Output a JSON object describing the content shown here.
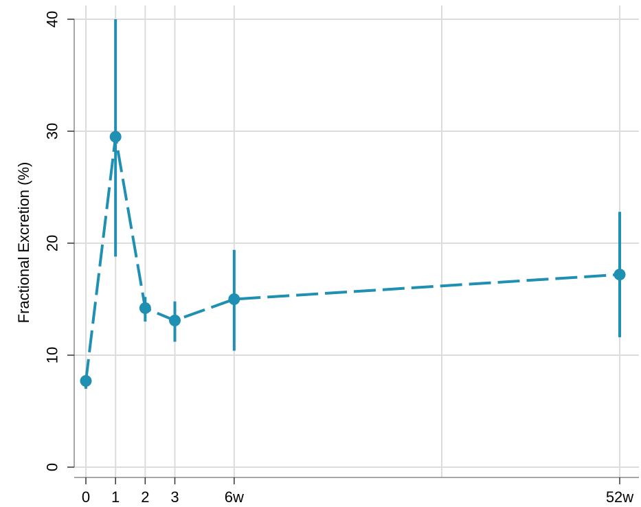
{
  "chart_data": {
    "type": "line",
    "title": "",
    "xlabel": "",
    "ylabel": "Fractional Excretion (%)",
    "x_ticks": [
      {
        "label": "0",
        "x": 0
      },
      {
        "label": "1",
        "x": 1
      },
      {
        "label": "2",
        "x": 2
      },
      {
        "label": "3",
        "x": 3
      },
      {
        "label": "6w",
        "x": 5
      },
      {
        "label": "52w",
        "x": 18
      }
    ],
    "x_gridlines": [
      0,
      1,
      2,
      3,
      5,
      12,
      18
    ],
    "y_ticks": [
      0,
      10,
      20,
      30,
      40
    ],
    "ylim": [
      0,
      40
    ],
    "xlim": [
      0,
      18
    ],
    "grid": true,
    "series": [
      {
        "color": "#1f8fb2",
        "line_style": "dashed",
        "points": [
          {
            "x": 0,
            "y": 7.7,
            "lower": 7.0,
            "upper": 8.0
          },
          {
            "x": 1,
            "y": 29.5,
            "lower": 18.8,
            "upper": 40.0
          },
          {
            "x": 2,
            "y": 14.2,
            "lower": 13.0,
            "upper": 15.2
          },
          {
            "x": 3,
            "y": 13.1,
            "lower": 11.2,
            "upper": 14.8
          },
          {
            "x": 5,
            "y": 15.0,
            "lower": 10.4,
            "upper": 19.4
          },
          {
            "x": 18,
            "y": 17.2,
            "lower": 11.6,
            "upper": 22.8
          }
        ]
      }
    ]
  }
}
